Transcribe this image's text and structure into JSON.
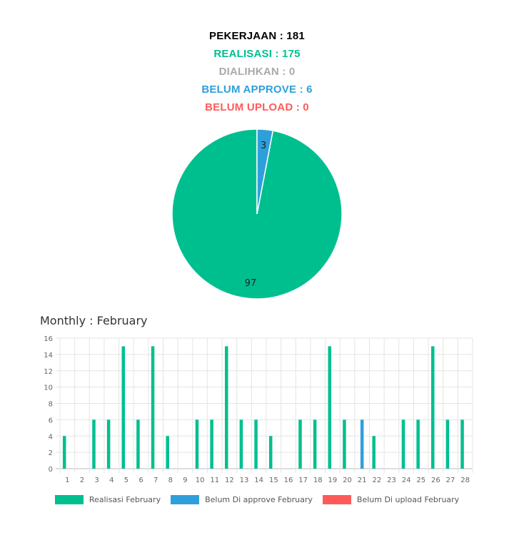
{
  "summary": {
    "pekerjaan": "PEKERJAAN : 181",
    "realisasi": "REALISASI : 175",
    "dialihkan": "DIALIHKAN : 0",
    "belum_approve": "BELUM APPROVE : 6",
    "belum_upload": "BELUM UPLOAD : 0"
  },
  "colors": {
    "realisasi": "#00bf8f",
    "approve": "#2f9fdb",
    "upload": "#ff5a5a",
    "dialihkan": "#aaaaaa",
    "pekerjaan": "#000000"
  },
  "monthly_title": "Monthly : February",
  "legend": [
    {
      "label": "Realisasi February",
      "color": "#00bf8f"
    },
    {
      "label": "Belum Di approve February",
      "color": "#2f9fdb"
    },
    {
      "label": "Belum Di upload February",
      "color": "#ff5a5a"
    }
  ],
  "chart_data": [
    {
      "type": "pie",
      "labels": [
        "Realisasi",
        "Belum Approve"
      ],
      "values": [
        97,
        3
      ],
      "colors": [
        "#00bf8f",
        "#2f9fdb"
      ]
    },
    {
      "type": "bar",
      "title": "Monthly : February",
      "categories": [
        "1",
        "2",
        "3",
        "4",
        "5",
        "6",
        "7",
        "8",
        "9",
        "10",
        "11",
        "12",
        "13",
        "14",
        "15",
        "16",
        "17",
        "18",
        "19",
        "20",
        "21",
        "22",
        "23",
        "24",
        "25",
        "26",
        "27",
        "28"
      ],
      "series": [
        {
          "name": "Realisasi February",
          "color": "#00bf8f",
          "values": [
            4,
            0,
            6,
            6,
            15,
            6,
            15,
            4,
            0,
            6,
            6,
            15,
            6,
            6,
            4,
            0,
            6,
            6,
            15,
            6,
            0,
            4,
            0,
            6,
            6,
            15,
            6,
            6
          ]
        },
        {
          "name": "Belum Di approve February",
          "color": "#2f9fdb",
          "values": [
            0,
            0,
            0,
            0,
            0,
            0,
            0,
            0,
            0,
            0,
            0,
            0,
            0,
            0,
            0,
            0,
            0,
            0,
            0,
            0,
            6,
            0,
            0,
            0,
            0,
            0,
            0,
            0
          ]
        },
        {
          "name": "Belum Di upload February",
          "color": "#ff5a5a",
          "values": [
            0,
            0,
            0,
            0,
            0,
            0,
            0,
            0,
            0,
            0,
            0,
            0,
            0,
            0,
            0,
            0,
            0,
            0,
            0,
            0,
            0,
            0,
            0,
            0,
            0,
            0,
            0,
            0
          ]
        }
      ],
      "ylim": [
        0,
        16
      ],
      "yticks": [
        0,
        2,
        4,
        6,
        8,
        10,
        12,
        14,
        16
      ],
      "grid": true,
      "legend_position": "bottom"
    }
  ]
}
